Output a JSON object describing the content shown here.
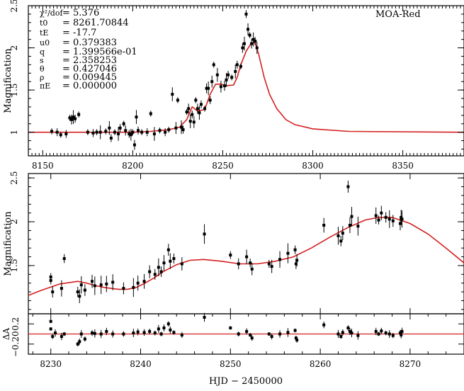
{
  "chart_data": [
    {
      "type": "scatter",
      "panel": "top",
      "title": "MOA-Red",
      "ylabel": "Magnification",
      "xlabel": "",
      "xlim": [
        8142,
        8384
      ],
      "ylim": [
        0.72,
        2.5
      ],
      "xticks": [
        8150,
        8200,
        8250,
        8300,
        8350
      ],
      "yticks": [
        1,
        1.5,
        2,
        2.5
      ],
      "yticklabels": [
        "1",
        "1.5",
        "2",
        "2.5"
      ],
      "params": [
        {
          "sym": "χ²/dof",
          "val": "= 5.376"
        },
        {
          "sym": "t0",
          "val": "= 8261.70844"
        },
        {
          "sym": "tE",
          "val": "= -17.7"
        },
        {
          "sym": "u0",
          "val": "= 0.379383"
        },
        {
          "sym": "q",
          "val": "= 1.399566e-01"
        },
        {
          "sym": "s",
          "val": "= 2.358253"
        },
        {
          "sym": "θ",
          "val": "= 0.427046"
        },
        {
          "sym": "ρ",
          "val": "= 0.009445"
        },
        {
          "sym": "πE",
          "val": "= 0.000000"
        }
      ],
      "model": [
        [
          8142,
          1.0
        ],
        [
          8200,
          1.0
        ],
        [
          8210,
          1.01
        ],
        [
          8220,
          1.03
        ],
        [
          8226,
          1.06
        ],
        [
          8230,
          1.15
        ],
        [
          8233,
          1.3
        ],
        [
          8236,
          1.25
        ],
        [
          8240,
          1.27
        ],
        [
          8243,
          1.45
        ],
        [
          8246,
          1.57
        ],
        [
          8249,
          1.57
        ],
        [
          8252,
          1.55
        ],
        [
          8256,
          1.56
        ],
        [
          8258,
          1.65
        ],
        [
          8260,
          1.8
        ],
        [
          8263,
          1.96
        ],
        [
          8266,
          2.06
        ],
        [
          8268,
          2.06
        ],
        [
          8270,
          1.92
        ],
        [
          8273,
          1.65
        ],
        [
          8276,
          1.45
        ],
        [
          8280,
          1.28
        ],
        [
          8285,
          1.15
        ],
        [
          8290,
          1.09
        ],
        [
          8300,
          1.04
        ],
        [
          8320,
          1.01
        ],
        [
          8384,
          1.0
        ]
      ],
      "points": [
        [
          8155,
          1.01
        ],
        [
          8158,
          1.0
        ],
        [
          8160,
          0.97
        ],
        [
          8163,
          0.98
        ],
        [
          8165,
          1.17
        ],
        [
          8166,
          1.15
        ],
        [
          8167,
          1.18
        ],
        [
          8168,
          1.16
        ],
        [
          8170,
          1.21
        ],
        [
          8175,
          1.0
        ],
        [
          8178,
          0.99
        ],
        [
          8180,
          1.0
        ],
        [
          8182,
          1.0
        ],
        [
          8185,
          1.01
        ],
        [
          8187,
          1.05
        ],
        [
          8188,
          0.93
        ],
        [
          8190,
          1.0
        ],
        [
          8192,
          0.98
        ],
        [
          8193,
          1.05
        ],
        [
          8195,
          1.1
        ],
        [
          8196,
          1.02
        ],
        [
          8198,
          0.98
        ],
        [
          8199,
          0.97
        ],
        [
          8200,
          1.0
        ],
        [
          8201,
          0.85
        ],
        [
          8202,
          1.18
        ],
        [
          8203,
          1.02
        ],
        [
          8205,
          1.0
        ],
        [
          8208,
          1.0
        ],
        [
          8210,
          1.22
        ],
        [
          8212,
          0.98
        ],
        [
          8215,
          1.02
        ],
        [
          8218,
          1.0
        ],
        [
          8220,
          1.03
        ],
        [
          8222,
          1.45
        ],
        [
          8224,
          1.05
        ],
        [
          8225,
          1.38
        ],
        [
          8227,
          1.06
        ],
        [
          8228,
          1.03
        ],
        [
          8230,
          1.24
        ],
        [
          8231,
          1.28
        ],
        [
          8232,
          1.13
        ],
        [
          8233,
          1.21
        ],
        [
          8234,
          1.12
        ],
        [
          8235,
          1.38
        ],
        [
          8236,
          1.28
        ],
        [
          8237,
          1.23
        ],
        [
          8238,
          1.33
        ],
        [
          8240,
          1.28
        ],
        [
          8241,
          1.52
        ],
        [
          8242,
          1.52
        ],
        [
          8243,
          1.38
        ],
        [
          8244,
          1.6
        ],
        [
          8245,
          1.8
        ],
        [
          8247,
          1.68
        ],
        [
          8249,
          1.54
        ],
        [
          8251,
          1.55
        ],
        [
          8252,
          1.62
        ],
        [
          8253,
          1.68
        ],
        [
          8255,
          1.65
        ],
        [
          8257,
          1.72
        ],
        [
          8258,
          1.8
        ],
        [
          8260,
          1.78
        ],
        [
          8261,
          2.0
        ],
        [
          8262,
          2.05
        ],
        [
          8263,
          2.4
        ],
        [
          8264,
          2.22
        ],
        [
          8265,
          2.15
        ],
        [
          8266,
          2.05
        ],
        [
          8267,
          2.1
        ],
        [
          8268,
          2.08
        ],
        [
          8269,
          2.0
        ]
      ]
    },
    {
      "type": "scatter",
      "panel": "middle",
      "ylabel": "Magnification",
      "xlim": [
        8227.5,
        8276
      ],
      "ylim": [
        0.95,
        2.55
      ],
      "yticks": [
        1.5,
        2,
        2.5
      ],
      "yticklabels": [
        "1.5",
        "2",
        "2.5"
      ],
      "model": [
        [
          8227.5,
          1.16
        ],
        [
          8229,
          1.22
        ],
        [
          8231,
          1.29
        ],
        [
          8233,
          1.32
        ],
        [
          8234,
          1.3
        ],
        [
          8235,
          1.27
        ],
        [
          8236,
          1.25
        ],
        [
          8237.5,
          1.23
        ],
        [
          8238.5,
          1.23
        ],
        [
          8239.5,
          1.25
        ],
        [
          8240.5,
          1.3
        ],
        [
          8241.5,
          1.36
        ],
        [
          8242.5,
          1.43
        ],
        [
          8244,
          1.51
        ],
        [
          8245.5,
          1.56
        ],
        [
          8247,
          1.57
        ],
        [
          8249,
          1.55
        ],
        [
          8251,
          1.52
        ],
        [
          8253,
          1.52
        ],
        [
          8255,
          1.55
        ],
        [
          8257,
          1.6
        ],
        [
          8259,
          1.7
        ],
        [
          8261,
          1.82
        ],
        [
          8263,
          1.93
        ],
        [
          8265,
          2.02
        ],
        [
          8266.5,
          2.05
        ],
        [
          8268,
          2.05
        ],
        [
          8270,
          1.98
        ],
        [
          8272,
          1.86
        ],
        [
          8274,
          1.7
        ],
        [
          8276,
          1.53
        ]
      ],
      "points": [
        [
          8230,
          1.37
        ],
        [
          8230,
          1.33
        ],
        [
          8230.2,
          1.2
        ],
        [
          8231.2,
          1.24
        ],
        [
          8231.5,
          1.58
        ],
        [
          8233,
          1.2
        ],
        [
          8233.2,
          1.15
        ],
        [
          8233.4,
          1.28
        ],
        [
          8233.8,
          1.22
        ],
        [
          8234.6,
          1.32
        ],
        [
          8234.9,
          1.27
        ],
        [
          8235.6,
          1.28
        ],
        [
          8236.2,
          1.29
        ],
        [
          8236.9,
          1.31
        ],
        [
          8238.1,
          1.24
        ],
        [
          8239.2,
          1.25
        ],
        [
          8239.7,
          1.3
        ],
        [
          8240.4,
          1.32
        ],
        [
          8241,
          1.43
        ],
        [
          8241.6,
          1.4
        ],
        [
          8242,
          1.48
        ],
        [
          8242.3,
          1.43
        ],
        [
          8242.6,
          1.53
        ],
        [
          8243.1,
          1.68
        ],
        [
          8243.3,
          1.55
        ],
        [
          8243.7,
          1.58
        ],
        [
          8244.6,
          1.52
        ],
        [
          8247.1,
          1.86
        ],
        [
          8250,
          1.62
        ],
        [
          8250.9,
          1.52
        ],
        [
          8251.8,
          1.6
        ],
        [
          8252.2,
          1.53
        ],
        [
          8252.4,
          1.46
        ],
        [
          8254.3,
          1.52
        ],
        [
          8254.6,
          1.49
        ],
        [
          8255.5,
          1.57
        ],
        [
          8256.4,
          1.64
        ],
        [
          8257.2,
          1.68
        ],
        [
          8257.3,
          1.52
        ],
        [
          8257.4,
          1.56
        ],
        [
          8260.4,
          1.96
        ],
        [
          8262,
          1.84
        ],
        [
          8262.3,
          1.78
        ],
        [
          8262.5,
          1.87
        ],
        [
          8263.1,
          2.4
        ],
        [
          8263.3,
          1.96
        ],
        [
          8263.5,
          2.06
        ],
        [
          8264.2,
          1.95
        ],
        [
          8266.2,
          2.07
        ],
        [
          8266.5,
          2.02
        ],
        [
          8266.8,
          2.1
        ],
        [
          8267.3,
          2.05
        ],
        [
          8267.7,
          2.03
        ],
        [
          8268.1,
          2.01
        ],
        [
          8268.9,
          1.98
        ],
        [
          8269,
          2.05
        ],
        [
          8269.1,
          2.03
        ]
      ]
    },
    {
      "type": "scatter",
      "panel": "residuals",
      "ylabel": "ΔA",
      "xlabel": "HJD − 2450000",
      "xlim": [
        8227.5,
        8276
      ],
      "ylim": [
        -0.4,
        0.4
      ],
      "xticks": [
        8230,
        8240,
        8250,
        8260,
        8270
      ],
      "yticks": [
        0.2,
        -0.2
      ],
      "yticklabels": [
        "0.2",
        "−0.20"
      ],
      "points": [
        [
          8230,
          0.25
        ],
        [
          8230,
          0.1
        ],
        [
          8230.2,
          -0.05
        ],
        [
          8230.5,
          0.02
        ],
        [
          8231.2,
          -0.05
        ],
        [
          8231.5,
          0.0
        ],
        [
          8233,
          -0.2
        ],
        [
          8233.2,
          -0.15
        ],
        [
          8233.4,
          0.0
        ],
        [
          8233.8,
          -0.1
        ],
        [
          8234.6,
          0.02
        ],
        [
          8234.9,
          0.01
        ],
        [
          8235.6,
          0.0
        ],
        [
          8236.2,
          0.05
        ],
        [
          8236.9,
          0.0
        ],
        [
          8238.1,
          0.0
        ],
        [
          8239.2,
          0.02
        ],
        [
          8239.7,
          0.04
        ],
        [
          8240.4,
          0.03
        ],
        [
          8241,
          0.05
        ],
        [
          8241.6,
          0.02
        ],
        [
          8242,
          0.1
        ],
        [
          8242.3,
          0.0
        ],
        [
          8242.6,
          0.12
        ],
        [
          8243.1,
          0.2
        ],
        [
          8243.3,
          0.08
        ],
        [
          8243.7,
          0.03
        ],
        [
          8244.6,
          -0.02
        ],
        [
          8247.1,
          0.33
        ],
        [
          8250,
          0.12
        ],
        [
          8250.9,
          0.0
        ],
        [
          8251.8,
          0.05
        ],
        [
          8252.2,
          -0.02
        ],
        [
          8252.4,
          -0.08
        ],
        [
          8254.3,
          0.0
        ],
        [
          8254.6,
          -0.05
        ],
        [
          8255.5,
          0.0
        ],
        [
          8256.4,
          0.03
        ],
        [
          8257.2,
          0.07
        ],
        [
          8257.3,
          -0.08
        ],
        [
          8257.4,
          -0.12
        ],
        [
          8260.4,
          0.18
        ],
        [
          8262,
          0.0
        ],
        [
          8262.3,
          -0.05
        ],
        [
          8262.5,
          0.03
        ],
        [
          8263.1,
          0.12
        ],
        [
          8263.3,
          0.05
        ],
        [
          8263.5,
          0.02
        ],
        [
          8264.2,
          -0.03
        ],
        [
          8266.2,
          0.05
        ],
        [
          8266.5,
          0.0
        ],
        [
          8266.8,
          0.06
        ],
        [
          8267.3,
          0.02
        ],
        [
          8267.7,
          0.0
        ],
        [
          8268.1,
          -0.03
        ],
        [
          8268.9,
          0.02
        ],
        [
          8269,
          -0.02
        ],
        [
          8269.1,
          0.05
        ]
      ]
    }
  ]
}
